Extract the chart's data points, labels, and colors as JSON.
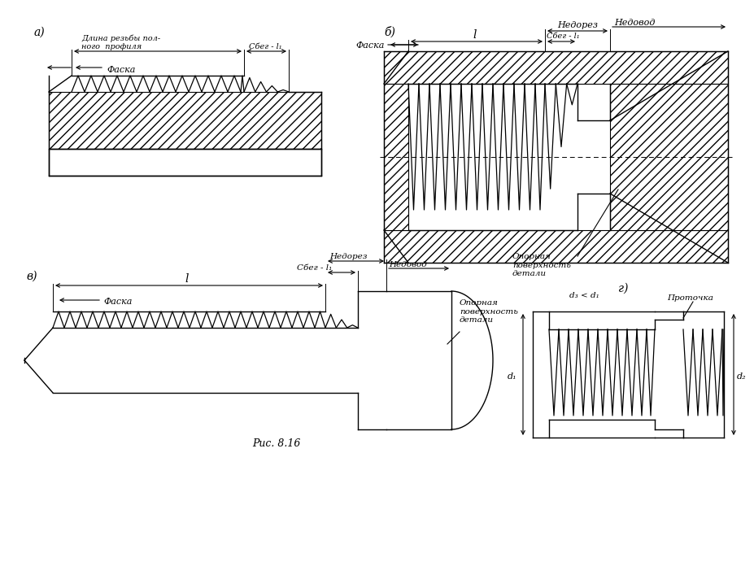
{
  "bg_color": "#ffffff",
  "lc": "#000000",
  "labels": {
    "a": "a)",
    "b": "б)",
    "v": "в)",
    "g": "г)"
  },
  "fig_caption": "Рис. 8.16",
  "texts": {
    "dlina": "Длина резьбы пол-\nного  профиля",
    "sbeg": "Сбег - l₁",
    "faska": "Фаска",
    "nedorez": "Недорез",
    "nedovod": "Недовод",
    "opornaya": "Опорная\nповерхность\nдетали",
    "protochka": "Проточка",
    "d3d1": "d₃ < d₁",
    "d1": "d₁",
    "d2": "d₂",
    "l": "l"
  }
}
